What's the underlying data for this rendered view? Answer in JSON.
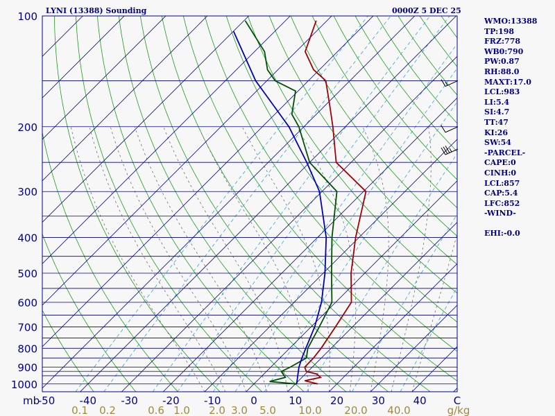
{
  "header": {
    "station": "LYNI (13388) Sounding",
    "time": "0000Z  5 DEC 25"
  },
  "chart_data": {
    "type": "skewt",
    "pressure_axis_unit": "mb",
    "pressure_labels": [
      100,
      200,
      300,
      400,
      500,
      600,
      700,
      800,
      900,
      1000
    ],
    "pressure_levels": [
      100,
      150,
      200,
      250,
      300,
      350,
      400,
      450,
      500,
      550,
      600,
      650,
      700,
      750,
      800,
      850,
      900,
      925,
      950,
      1000
    ],
    "temp_ticks": [
      "-50",
      "-40",
      "-30",
      "-20",
      "-10",
      "0",
      "10",
      "20",
      "30",
      "40"
    ],
    "temp_unit": "C",
    "mixing_ratio_labels": [
      "0.1",
      "0.2",
      "0.6",
      "1.0",
      "2.0",
      "3.0",
      "5.0",
      "10.0",
      "20.0",
      "40.0"
    ],
    "mixing_ratio_unit": "g/kg",
    "series": [
      {
        "key": "temperature",
        "color": "#a00000",
        "points": [
          [
            15.4,
            1000
          ],
          [
            11.5,
            980
          ],
          [
            14.5,
            960
          ],
          [
            12.8,
            940
          ],
          [
            9.6,
            925
          ],
          [
            8.2,
            900
          ],
          [
            8.1,
            850
          ],
          [
            7.6,
            800
          ],
          [
            5.9,
            700
          ],
          [
            3.8,
            600
          ],
          [
            -3.3,
            500
          ],
          [
            -10.8,
            400
          ],
          [
            -19.4,
            300
          ],
          [
            -33.6,
            250
          ],
          [
            -43.0,
            200
          ],
          [
            -48.9,
            175
          ],
          [
            -55.8,
            150
          ],
          [
            -61.4,
            140
          ],
          [
            -67.8,
            125
          ],
          [
            -72.6,
            103
          ]
        ]
      },
      {
        "key": "dewpoint",
        "color": "#005000",
        "points": [
          [
            10.3,
            1000
          ],
          [
            3.2,
            985
          ],
          [
            6.0,
            960
          ],
          [
            3.6,
            925
          ],
          [
            4.7,
            900
          ],
          [
            6.4,
            850
          ],
          [
            4.4,
            800
          ],
          [
            2.0,
            700
          ],
          [
            -0.9,
            600
          ],
          [
            -8.0,
            500
          ],
          [
            -16.5,
            400
          ],
          [
            -26.4,
            300
          ],
          [
            -40.0,
            250
          ],
          [
            -51.2,
            200
          ],
          [
            -55.9,
            185
          ],
          [
            -60.6,
            160
          ],
          [
            -68.0,
            150
          ],
          [
            -72.5,
            140
          ],
          [
            -77.6,
            125
          ],
          [
            -89.7,
            103
          ]
        ]
      },
      {
        "key": "parcel",
        "color": "#0000b4",
        "points": [
          [
            10.3,
            1000
          ],
          [
            6.8,
            900
          ],
          [
            5.3,
            850
          ],
          [
            3.9,
            800
          ],
          [
            0.9,
            700
          ],
          [
            -3.4,
            600
          ],
          [
            -9.6,
            500
          ],
          [
            -17.9,
            400
          ],
          [
            -30.6,
            300
          ],
          [
            -40.7,
            250
          ],
          [
            -53.6,
            200
          ],
          [
            -72.7,
            150
          ],
          [
            -90.0,
            110
          ]
        ]
      }
    ],
    "wind_barbs": [
      {
        "pressure": 150,
        "speed_kt": 15
      },
      {
        "pressure": 200,
        "speed_kt": 10
      },
      {
        "pressure": 230,
        "speed_kt": 35
      }
    ]
  },
  "indices": [
    "WMO:13388",
    "TP:198",
    "FRZ:778",
    "WB0:790",
    "PW:0.87",
    "RH:88.0",
    "MAXT:17.0",
    "LCL:983",
    "LI:5.4",
    "SI:4.7",
    "TT:47",
    "KI:26",
    "SW:54",
    "-PARCEL-",
    "CAPE:0",
    "CINH:0",
    "LCL:857",
    "CAP:5.4",
    "LFC:852",
    "-WIND-",
    "",
    "EHI:-0.0"
  ],
  "colors": {
    "background": "#f7f7f7",
    "isobar": "#00008b",
    "isotherm": "#00008b",
    "dry_adiabat": "#1a9e1a",
    "moist_adiabat": "#6e6e6e",
    "mixing_ratio": "#39a0d8",
    "text": "#00008b"
  }
}
